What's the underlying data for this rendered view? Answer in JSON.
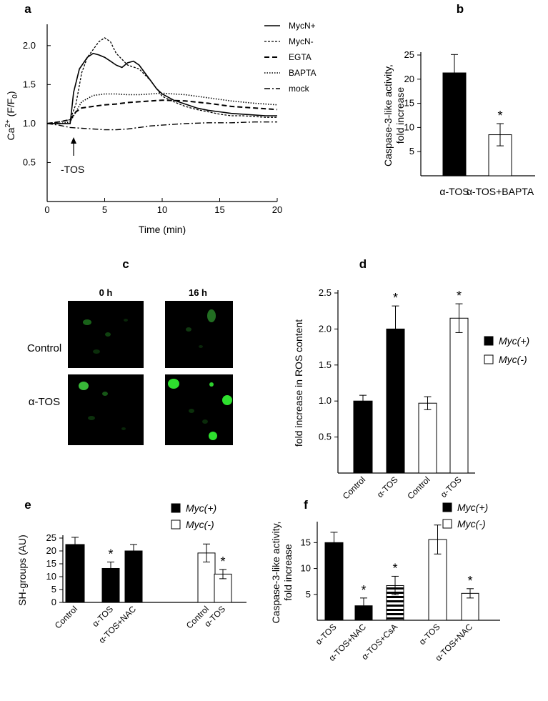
{
  "figure": {
    "micrographs": {
      "panel_label": "c",
      "columns": [
        "0 h",
        "16 h"
      ],
      "rows": [
        "Control",
        "α-TOS"
      ]
    }
  },
  "chart_data": [
    {
      "id": "a",
      "panel_label": "a",
      "type": "line",
      "xlabel": "Time (min)",
      "ylabel": "Ca2+ (F/F0)",
      "xlim": [
        0,
        20
      ],
      "ylim": [
        0,
        2.2
      ],
      "xticks": [
        "0",
        "5",
        "10",
        "15",
        "20"
      ],
      "yticks": [
        "0.5",
        "1.0",
        "1.5",
        "2.0"
      ],
      "annotation": "-TOS",
      "annotation_x": 2.3,
      "series": [
        {
          "name": "MycN+",
          "style": "solid",
          "x": [
            0,
            1,
            2,
            2.3,
            2.8,
            3.5,
            4,
            4.5,
            5,
            5.5,
            6,
            6.5,
            7,
            7.5,
            8,
            8.5,
            9,
            9.5,
            10,
            11,
            12,
            13,
            14,
            15,
            16,
            17,
            18,
            19,
            20
          ],
          "y": [
            1.0,
            1.0,
            1.0,
            1.4,
            1.7,
            1.85,
            1.9,
            1.88,
            1.85,
            1.8,
            1.75,
            1.72,
            1.78,
            1.8,
            1.75,
            1.65,
            1.55,
            1.45,
            1.38,
            1.3,
            1.25,
            1.2,
            1.17,
            1.15,
            1.13,
            1.12,
            1.11,
            1.1,
            1.1
          ]
        },
        {
          "name": "MycN-",
          "style": "dashed-fine",
          "x": [
            0,
            1,
            2,
            2.5,
            3,
            3.5,
            4,
            4.5,
            5,
            5.5,
            6,
            7,
            8,
            9,
            9.5,
            10,
            11,
            12,
            13,
            14,
            15,
            16,
            17,
            18,
            19,
            20
          ],
          "y": [
            1.0,
            1.02,
            1.05,
            1.25,
            1.65,
            1.85,
            1.95,
            2.05,
            2.1,
            2.05,
            1.9,
            1.75,
            1.7,
            1.55,
            1.45,
            1.35,
            1.28,
            1.22,
            1.18,
            1.15,
            1.12,
            1.1,
            1.1,
            1.09,
            1.08,
            1.08
          ]
        },
        {
          "name": "EGTA",
          "style": "dashed",
          "x": [
            0,
            1,
            2,
            2.5,
            3,
            4,
            5,
            6,
            7,
            8,
            9,
            10,
            12,
            14,
            16,
            18,
            20
          ],
          "y": [
            1.0,
            1.02,
            1.05,
            1.15,
            1.2,
            1.22,
            1.24,
            1.25,
            1.27,
            1.28,
            1.29,
            1.3,
            1.29,
            1.26,
            1.22,
            1.2,
            1.18
          ]
        },
        {
          "name": "BAPTA",
          "style": "dotted",
          "x": [
            0,
            1,
            2,
            2.3,
            3,
            4,
            5,
            6,
            7,
            8,
            9,
            10,
            11,
            12,
            14,
            16,
            18,
            20
          ],
          "y": [
            1.0,
            1.0,
            1.02,
            1.1,
            1.28,
            1.36,
            1.38,
            1.38,
            1.37,
            1.37,
            1.38,
            1.39,
            1.38,
            1.37,
            1.33,
            1.29,
            1.26,
            1.24
          ]
        },
        {
          "name": "mock",
          "style": "dashdot",
          "x": [
            0,
            1,
            2,
            3,
            4,
            5,
            6,
            7,
            8,
            9,
            10,
            12,
            14,
            16,
            18,
            20
          ],
          "y": [
            1.0,
            0.98,
            0.95,
            0.94,
            0.93,
            0.92,
            0.92,
            0.93,
            0.95,
            0.97,
            0.98,
            1.0,
            1.01,
            1.01,
            1.02,
            1.02
          ]
        }
      ]
    },
    {
      "id": "b",
      "panel_label": "b",
      "type": "bar",
      "ylabel": "Caspase-3-like activity, fold increase",
      "ylim": [
        0,
        25
      ],
      "yticks": [
        "5",
        "10",
        "15",
        "20",
        "25"
      ],
      "categories": [
        "α-TOS",
        "α-TOS+BAPTA"
      ],
      "values": [
        21.3,
        8.5
      ],
      "errors": [
        3.8,
        2.3
      ],
      "fills": [
        "#000000",
        "#ffffff"
      ],
      "stars": [
        false,
        true
      ]
    },
    {
      "id": "d",
      "panel_label": "d",
      "type": "bar",
      "ylabel": "fold increase in ROS content",
      "ylim": [
        0,
        2.5
      ],
      "yticks": [
        "0.5",
        "1.0",
        "1.5",
        "2.0",
        "2.5"
      ],
      "categories": [
        "Control",
        "α-TOS",
        "Control",
        "α-TOS"
      ],
      "values": [
        1.0,
        2.0,
        0.97,
        2.15
      ],
      "errors": [
        0.08,
        0.32,
        0.09,
        0.2
      ],
      "fills": [
        "#000000",
        "#000000",
        "#ffffff",
        "#ffffff"
      ],
      "stars": [
        false,
        true,
        false,
        true
      ],
      "legend": [
        {
          "label": "Myc(+)",
          "fill": "#000000"
        },
        {
          "label": "Myc(-)",
          "fill": "#ffffff"
        }
      ]
    },
    {
      "id": "e",
      "panel_label": "e",
      "type": "bar",
      "ylabel": "SH-groups (AU)",
      "ylim": [
        0,
        25
      ],
      "yticks": [
        "0",
        "5",
        "10",
        "15",
        "20",
        "25"
      ],
      "categories": [
        "Control",
        "α-TOS",
        "α-TOS+NAC",
        "Control",
        "α-TOS"
      ],
      "values": [
        22.5,
        13.2,
        20.0,
        19.2,
        11.0
      ],
      "errors": [
        2.8,
        2.5,
        2.5,
        3.5,
        1.8
      ],
      "fills": [
        "#000000",
        "#000000",
        "#000000",
        "#ffffff",
        "#ffffff"
      ],
      "stars": [
        false,
        true,
        false,
        false,
        true
      ],
      "legend": [
        {
          "label": "Myc(+)",
          "fill": "#000000"
        },
        {
          "label": "Myc(-)",
          "fill": "#ffffff"
        }
      ]
    },
    {
      "id": "f",
      "panel_label": "f",
      "type": "bar",
      "ylabel": "Caspase-3-like activity, fold increase",
      "ylim": [
        0,
        18.5
      ],
      "yticks": [
        "5",
        "10",
        "15"
      ],
      "categories": [
        "α-TOS",
        "α-TOS+NAC",
        "α-TOS+CsA",
        "α-TOS",
        "α-TOS+NAC"
      ],
      "values": [
        15.0,
        2.8,
        6.7,
        15.6,
        5.2
      ],
      "errors": [
        2.0,
        1.5,
        1.8,
        2.8,
        0.9
      ],
      "fills": [
        "#000000",
        "#000000",
        "stripes",
        "#ffffff",
        "#ffffff"
      ],
      "stars": [
        false,
        true,
        true,
        false,
        true
      ],
      "legend": [
        {
          "label": "Myc(+)",
          "fill": "#000000"
        },
        {
          "label": "Myc(-)",
          "fill": "#ffffff"
        }
      ]
    }
  ]
}
